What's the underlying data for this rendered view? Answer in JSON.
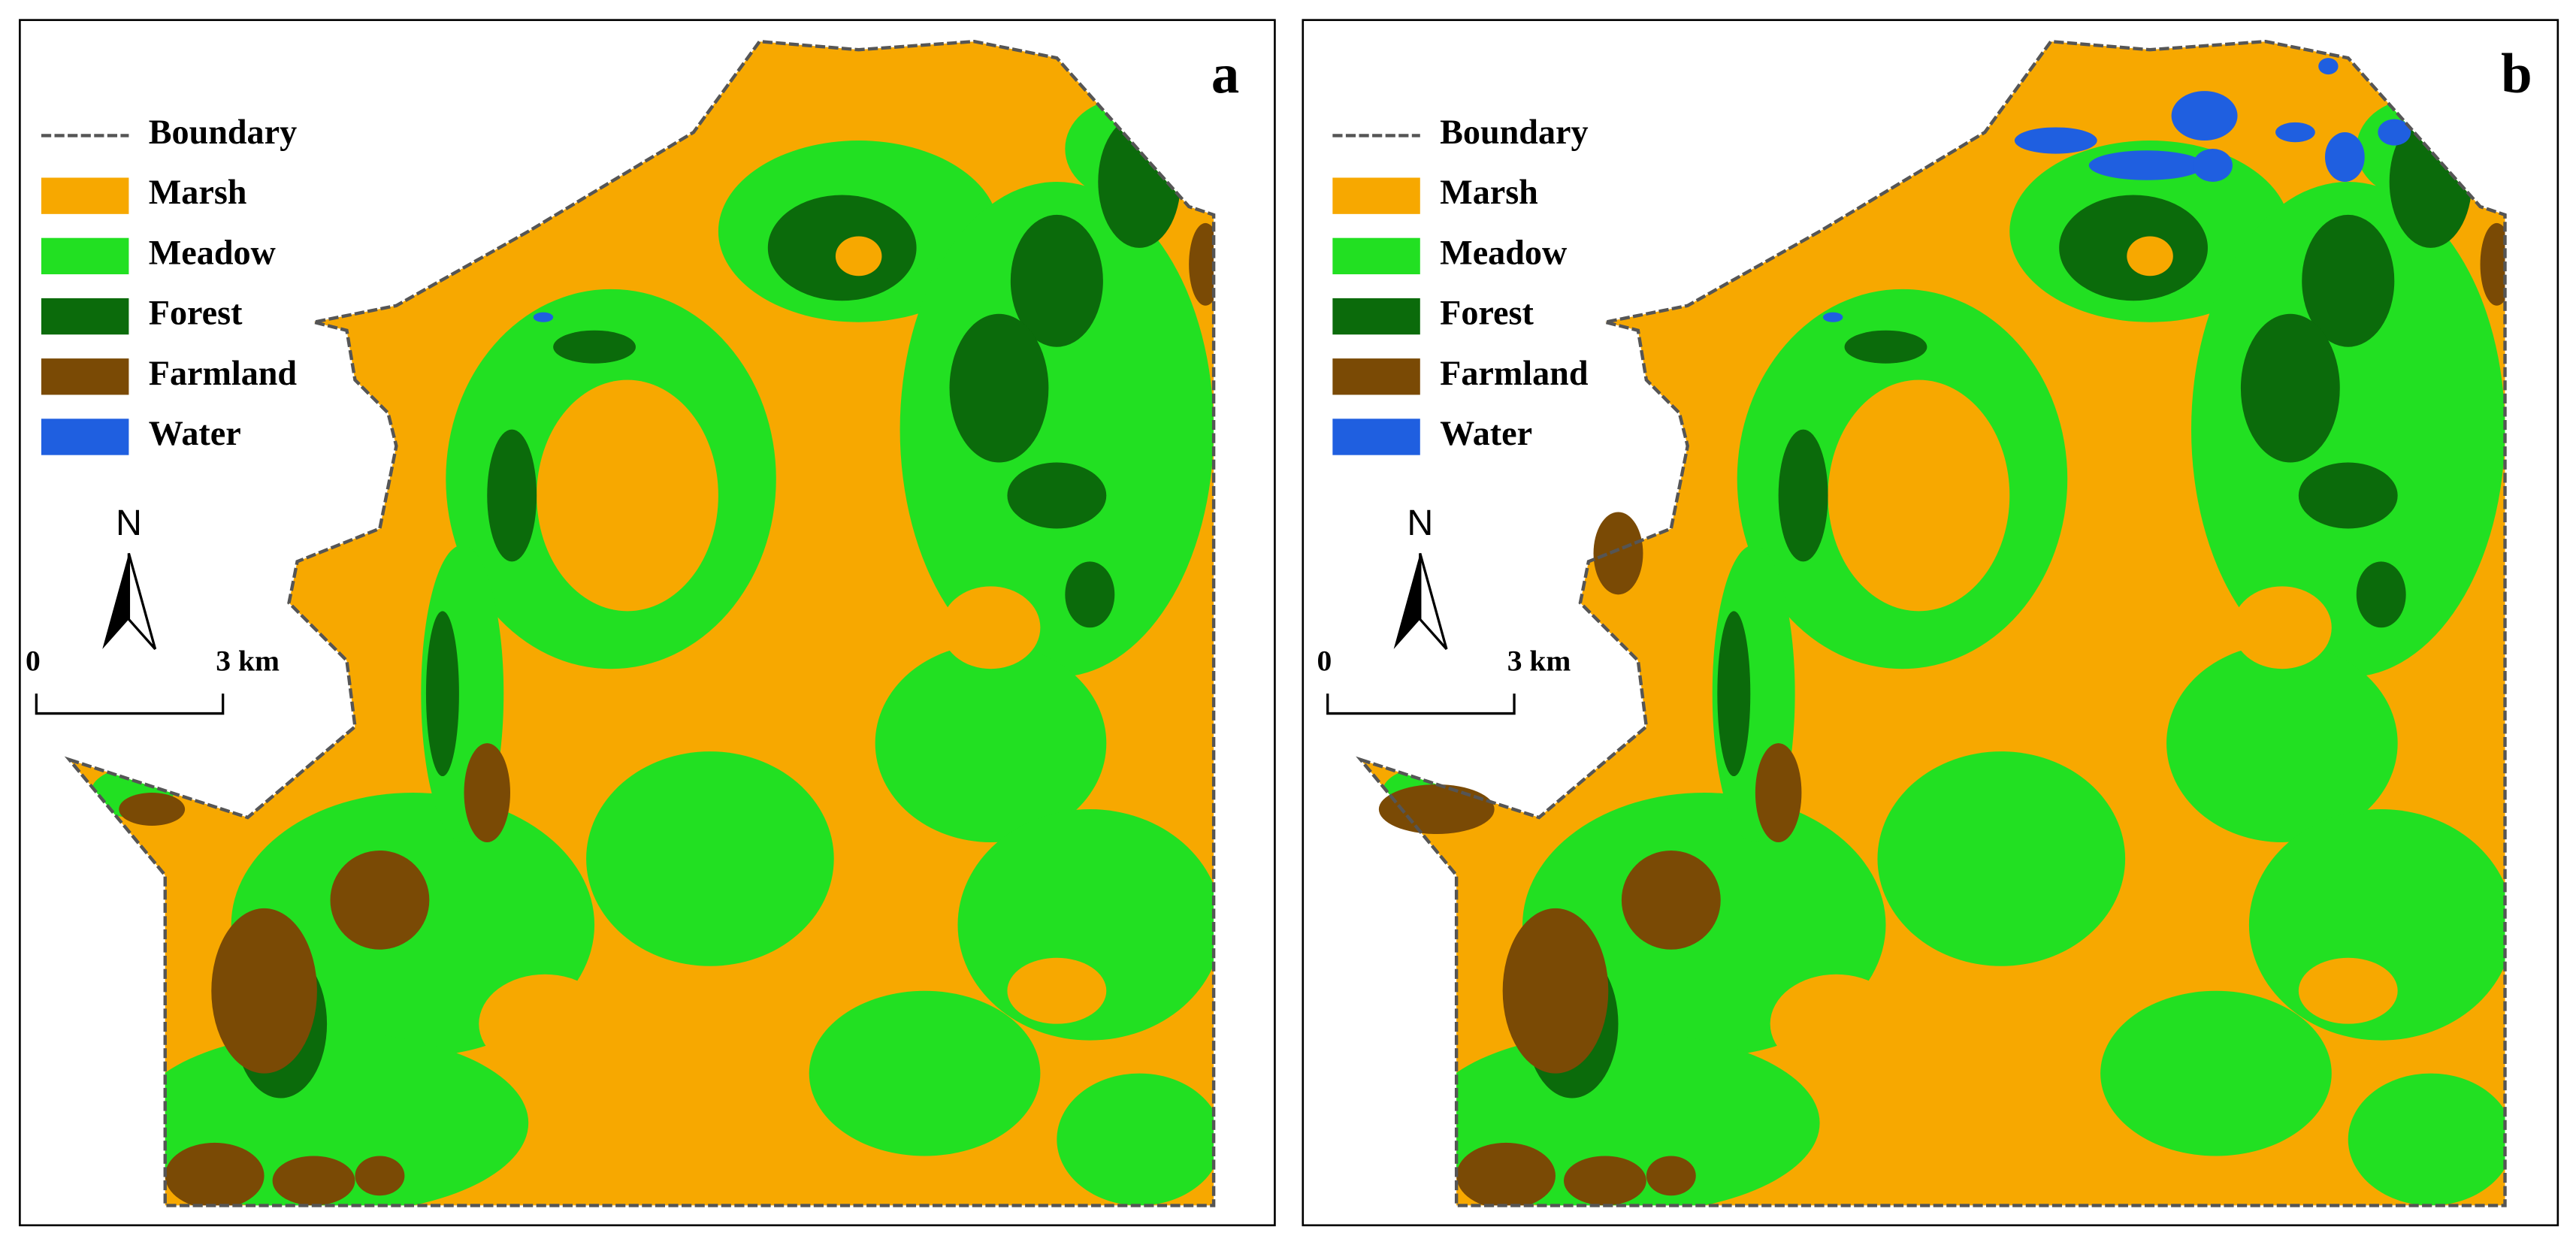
{
  "panels": [
    {
      "label": "a"
    },
    {
      "label": "b"
    }
  ],
  "legend": [
    {
      "name": "Boundary",
      "color": "#555555"
    },
    {
      "name": "Marsh",
      "color": "#F7A800"
    },
    {
      "name": "Meadow",
      "color": "#22E022"
    },
    {
      "name": "Forest",
      "color": "#0B6B0B"
    },
    {
      "name": "Farmland",
      "color": "#7A4A05"
    },
    {
      "name": "Water",
      "color": "#1F5FE0"
    }
  ],
  "north": "N",
  "scale": {
    "start": "0",
    "end": "3 km"
  }
}
